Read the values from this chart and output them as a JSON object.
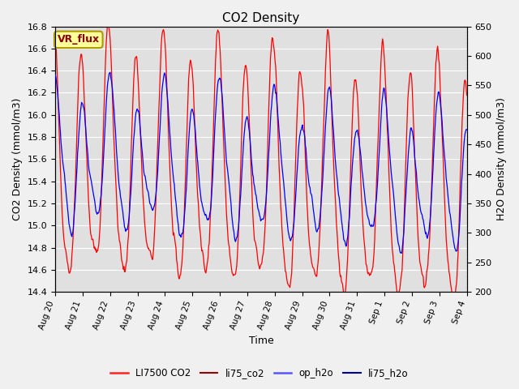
{
  "title": "CO2 Density",
  "xlabel": "Time",
  "ylabel_left": "CO2 Density (mmol/m3)",
  "ylabel_right": "H2O Density (mmol/m3)",
  "ylim_left": [
    14.4,
    16.8
  ],
  "ylim_right": [
    200,
    650
  ],
  "yticks_left": [
    14.4,
    14.6,
    14.8,
    15.0,
    15.2,
    15.4,
    15.6,
    15.8,
    16.0,
    16.2,
    16.4,
    16.6,
    16.8
  ],
  "yticks_right": [
    200,
    250,
    300,
    350,
    400,
    450,
    500,
    550,
    600,
    650
  ],
  "xtick_labels": [
    "Aug 20",
    "Aug 21",
    "Aug 22",
    "Aug 23",
    "Aug 24",
    "Aug 25",
    "Aug 26",
    "Aug 27",
    "Aug 28",
    "Aug 29",
    "Aug 30",
    "Aug 31",
    "Sep 1",
    "Sep 2",
    "Sep 3",
    "Sep 4"
  ],
  "legend_label": "VR_flux",
  "bg_color": "#e0e0e0",
  "grid_color": "#ffffff",
  "co2_color": "#ff0000",
  "h2o_color": "#0000ff",
  "figsize": [
    6.4,
    4.8
  ],
  "dpi": 100,
  "seed": 42
}
